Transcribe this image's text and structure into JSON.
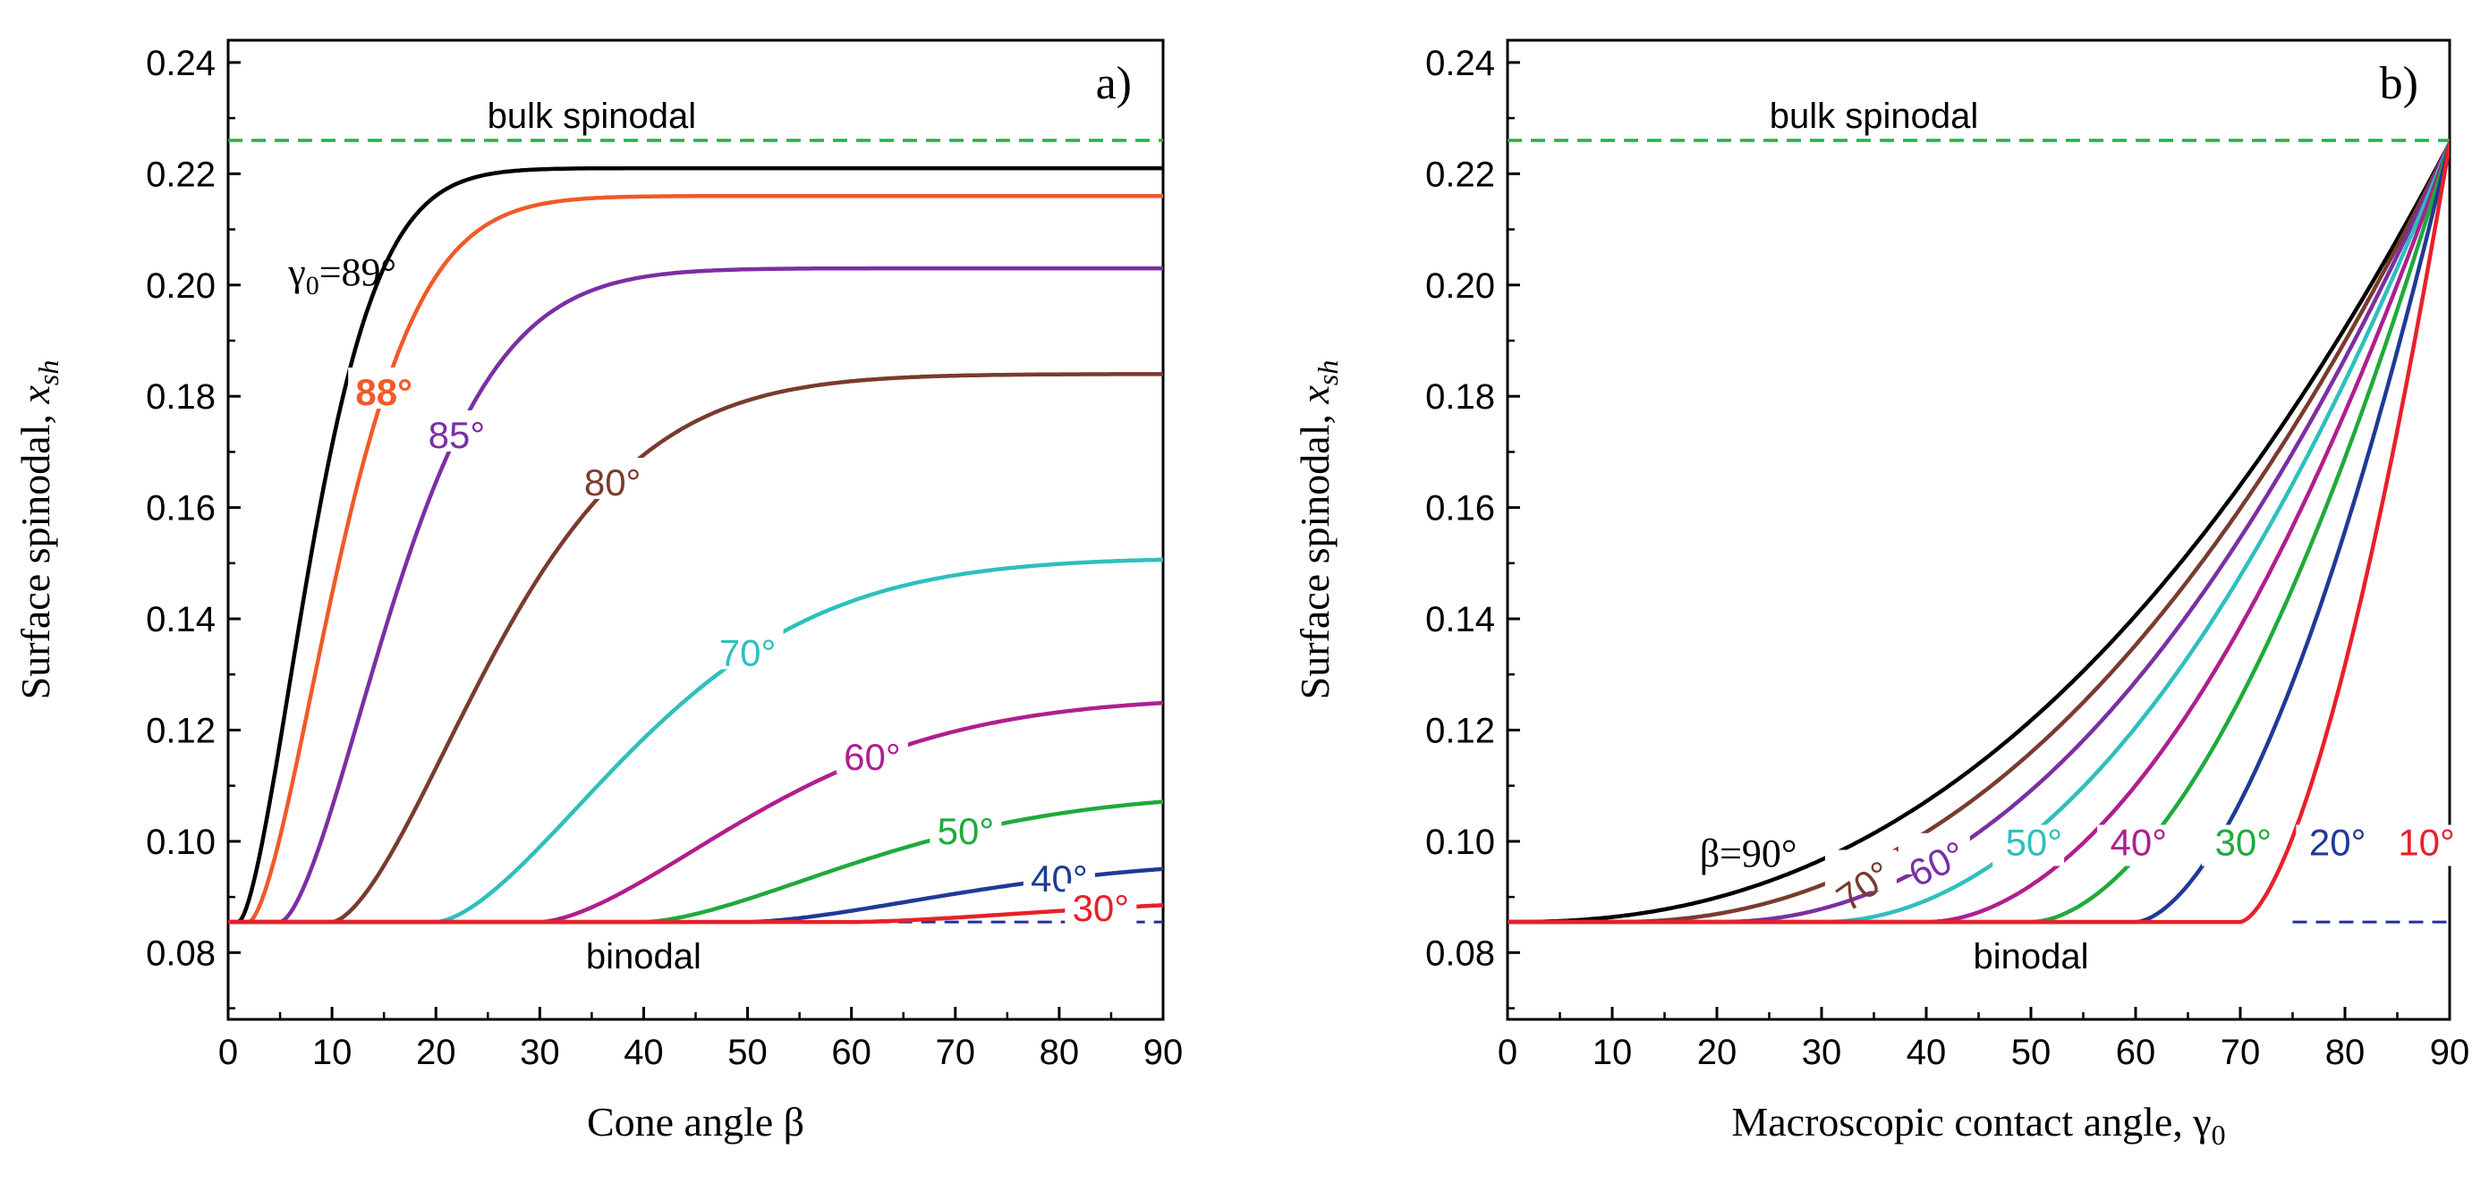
{
  "chart_data": [
    {
      "type": "line",
      "panel_tag": "a)",
      "xlabel": "Cone angle",
      "xlabel_symbol": "β",
      "ylabel_text": "Surface spinodal,",
      "ylabel_symbol": "x",
      "ylabel_subscript": "sh",
      "xlim": [
        0,
        90
      ],
      "ylim": [
        0.068,
        0.244
      ],
      "xticks": [
        "0",
        "10",
        "20",
        "30",
        "40",
        "50",
        "60",
        "70",
        "80",
        "90"
      ],
      "yticks": [
        "0.08",
        "0.10",
        "0.12",
        "0.14",
        "0.16",
        "0.18",
        "0.20",
        "0.22",
        "0.24"
      ],
      "bulk_spinodal": {
        "label": "bulk spinodal",
        "y": 0.226,
        "color": "#22b14c"
      },
      "binodal": {
        "label": "binodal",
        "y": 0.0855,
        "color": "#1f2f9e"
      },
      "series": [
        {
          "name": "γ0=89°",
          "label_prefix": "γ",
          "label_sub": "0",
          "label_rest": "=89°",
          "onset": 1,
          "plateau": 0.221,
          "tau": 9,
          "color": "#000000"
        },
        {
          "name": "88°",
          "label": "88°",
          "onset": 2,
          "plateau": 0.216,
          "tau": 11,
          "color": "#f05a28"
        },
        {
          "name": "85°",
          "label": "85°",
          "onset": 5,
          "plateau": 0.203,
          "tau": 14,
          "color": "#7b2fa3"
        },
        {
          "name": "80°",
          "label": "80°",
          "onset": 10,
          "plateau": 0.184,
          "tau": 20,
          "color": "#7a3b2e"
        },
        {
          "name": "70°",
          "label": "70°",
          "onset": 20,
          "plateau": 0.151,
          "tau": 25,
          "color": "#2ebfbf"
        },
        {
          "name": "60°",
          "label": "60°",
          "onset": 30,
          "plateau": 0.126,
          "tau": 27,
          "color": "#b01e8f"
        },
        {
          "name": "50°",
          "label": "50°",
          "onset": 40,
          "plateau": 0.109,
          "tau": 28,
          "color": "#1faa3a"
        },
        {
          "name": "40°",
          "label": "40°",
          "onset": 50,
          "plateau": 0.097,
          "tau": 28,
          "color": "#1f3a96"
        },
        {
          "name": "30°",
          "label": "30°",
          "onset": 60,
          "plateau": 0.09,
          "tau": 28,
          "color": "#e8202a"
        }
      ]
    },
    {
      "type": "line",
      "panel_tag": "b)",
      "xlabel_text": "Macroscopic contact angle,",
      "xlabel_symbol": "γ",
      "xlabel_subscript": "0",
      "ylabel_text": "Surface spinodal,",
      "ylabel_symbol": "x",
      "ylabel_subscript": "sh",
      "xlim": [
        0,
        90
      ],
      "ylim": [
        0.068,
        0.244
      ],
      "xticks": [
        "0",
        "10",
        "20",
        "30",
        "40",
        "50",
        "60",
        "70",
        "80",
        "90"
      ],
      "yticks": [
        "0.08",
        "0.10",
        "0.12",
        "0.14",
        "0.16",
        "0.18",
        "0.20",
        "0.22",
        "0.24"
      ],
      "bulk_spinodal": {
        "label": "bulk spinodal",
        "y": 0.226,
        "color": "#22b14c"
      },
      "binodal": {
        "label": "binodal",
        "y": 0.0855,
        "color": "#1f2f9e"
      },
      "endpoint": {
        "x": 90,
        "y": 0.2255
      },
      "series": [
        {
          "name": "β=90°",
          "label": "β=90°",
          "onset": 0,
          "power": 2.3,
          "color": "#000000"
        },
        {
          "name": "70°",
          "label": "70°",
          "onset": 10,
          "power": 2.2,
          "color": "#7a3b2e"
        },
        {
          "name": "60°",
          "label": "60°",
          "onset": 20,
          "power": 2.1,
          "color": "#7b2fa3"
        },
        {
          "name": "50°",
          "label": "50°",
          "onset": 30,
          "power": 2.0,
          "color": "#2ebfbf"
        },
        {
          "name": "40°",
          "label": "40°",
          "onset": 40,
          "power": 1.9,
          "color": "#b01e8f"
        },
        {
          "name": "30°",
          "label": "30°",
          "onset": 50,
          "power": 1.8,
          "color": "#1faa3a"
        },
        {
          "name": "20°",
          "label": "20°",
          "onset": 60,
          "power": 1.7,
          "color": "#1f3a96"
        },
        {
          "name": "10°",
          "label": "10°",
          "onset": 70,
          "power": 1.6,
          "color": "#e8202a"
        }
      ]
    }
  ]
}
